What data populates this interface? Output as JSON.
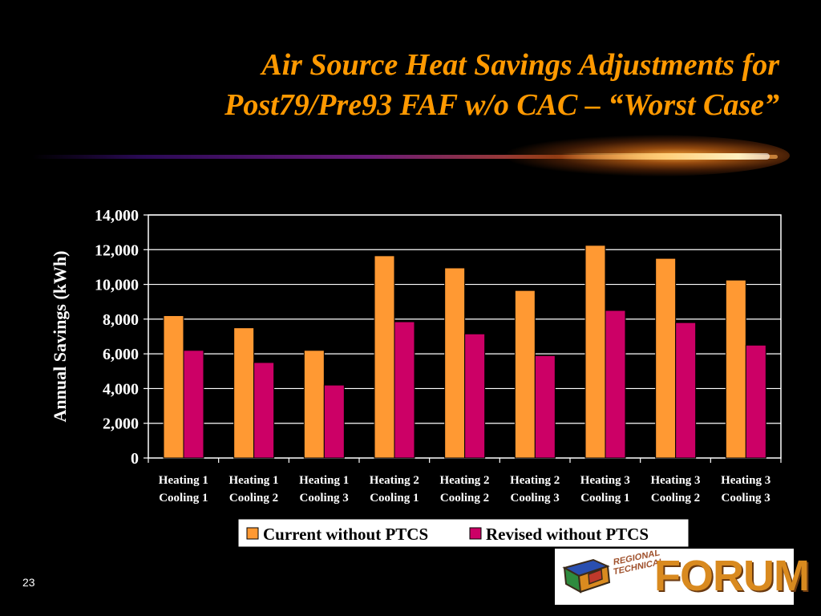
{
  "slide": {
    "title_line1": "Air Source Heat Savings Adjustments for",
    "title_line2": "Post79/Pre93 FAF w/o CAC – “Worst Case”",
    "page_number": "23",
    "logo_word": "FORUM",
    "logo_vertical_line1": "REGIONAL",
    "logo_vertical_line2": "TECHNICAL",
    "colors": {
      "background": "#000000",
      "title": "#ff9900"
    }
  },
  "chart_data": {
    "type": "bar",
    "ylabel": "Annual Savings (kWh)",
    "ylim": [
      0,
      14000
    ],
    "yticks": [
      0,
      2000,
      4000,
      6000,
      8000,
      10000,
      12000,
      14000
    ],
    "ytick_labels": [
      "0",
      "2,000",
      "4,000",
      "6,000",
      "8,000",
      "10,000",
      "12,000",
      "14,000"
    ],
    "grid": true,
    "legend_position": "bottom",
    "categories": [
      [
        "Heating 1",
        "Cooling 1"
      ],
      [
        "Heating 1",
        "Cooling 2"
      ],
      [
        "Heating 1",
        "Cooling 3"
      ],
      [
        "Heating 2",
        "Cooling 1"
      ],
      [
        "Heating 2",
        "Cooling 2"
      ],
      [
        "Heating 2",
        "Cooling 3"
      ],
      [
        "Heating 3",
        "Cooling 1"
      ],
      [
        "Heating 3",
        "Cooling 2"
      ],
      [
        "Heating 3",
        "Cooling 3"
      ]
    ],
    "series": [
      {
        "name": "Current without PTCS",
        "color": "#ff9933",
        "values": [
          8200,
          7500,
          6200,
          11650,
          10950,
          9650,
          12250,
          11500,
          10250
        ]
      },
      {
        "name": "Revised without PTCS",
        "color": "#cc0066",
        "values": [
          6200,
          5500,
          4200,
          7850,
          7150,
          5900,
          8500,
          7800,
          6500
        ]
      }
    ]
  }
}
